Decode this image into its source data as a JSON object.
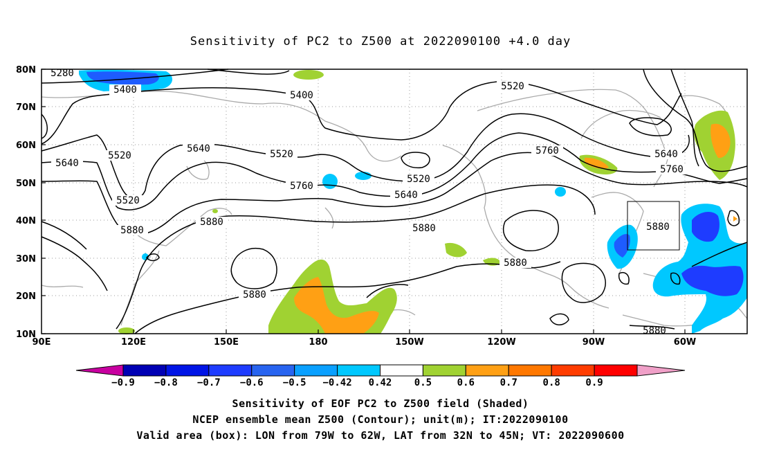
{
  "title": "Sensitivity of PC2 to Z500 at 2022090100 +4.0 day",
  "lat_labels": [
    "80N",
    "70N",
    "60N",
    "50N",
    "40N",
    "30N",
    "20N",
    "10N"
  ],
  "lon_labels": [
    "90E",
    "120E",
    "150E",
    "180",
    "150W",
    "120W",
    "90W",
    "60W"
  ],
  "contour_labels": [
    "5280",
    "5400",
    "5400",
    "5520",
    "5520",
    "5520",
    "5520",
    "5520",
    "5640",
    "5640",
    "5640",
    "5640",
    "5760",
    "5760",
    "5760",
    "5880",
    "5880",
    "5880",
    "5880",
    "5880",
    "5880"
  ],
  "colorbar": {
    "labels": [
      "−0.9",
      "−0.8",
      "−0.7",
      "−0.6",
      "−0.5",
      "−0.42",
      "0.42",
      "0.5",
      "0.6",
      "0.7",
      "0.8",
      "0.9"
    ],
    "colors": [
      "#0000b4",
      "#0014e6",
      "#1e3cff",
      "#2864f0",
      "#0aa0ff",
      "#00c8ff",
      "#ffffff",
      "#a0d232",
      "#ffa014",
      "#ff7800",
      "#ff3c00",
      "#ff0000"
    ],
    "low_arrow_color": "#c800a0",
    "high_arrow_color": "#f0a0c8"
  },
  "valid_box_label": "Valid area (box)",
  "captions": [
    "Sensitivity of EOF PC2 to Z500 field (Shaded)",
    "NCEP ensemble mean Z500 (Contour); unit(m); IT:2022090100",
    "Valid area (box): LON from 79W to 62W, LAT from 32N to 45N; VT: 2022090600"
  ]
}
